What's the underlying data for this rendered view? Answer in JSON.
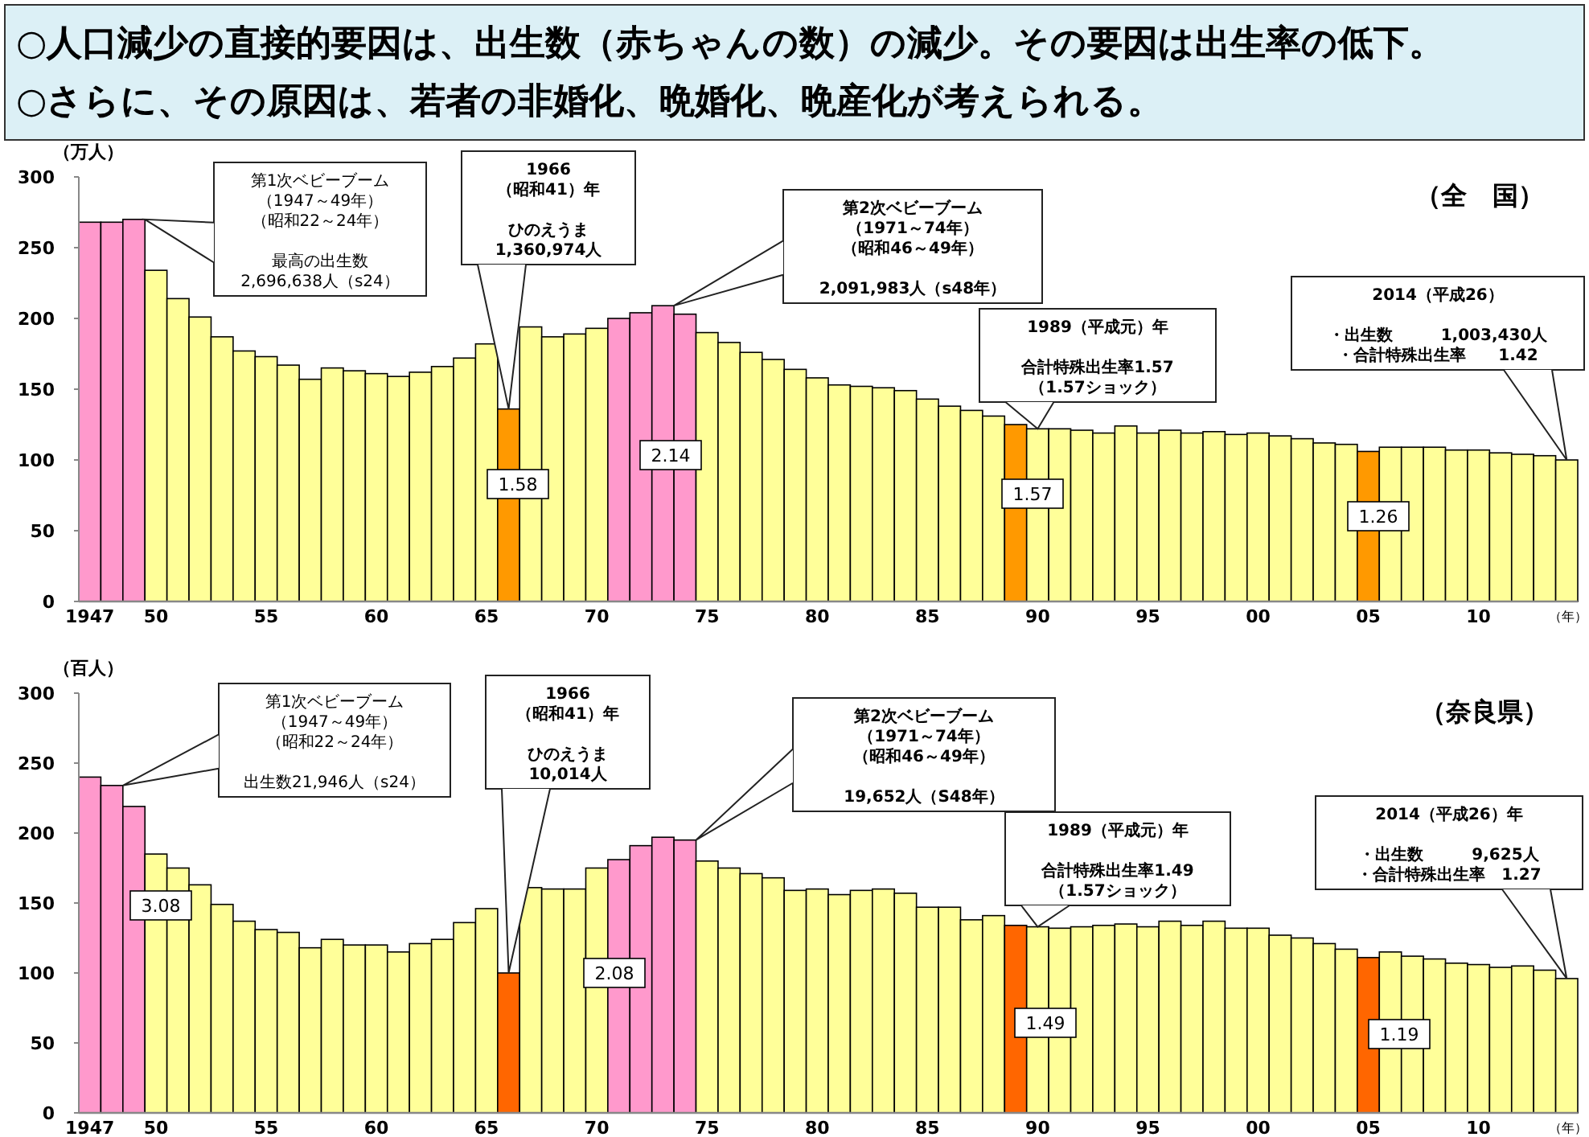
{
  "chart_data": [
    {
      "type": "bar",
      "title": "○人口減少の直接的要因は、出生数（赤ちゃんの数）の減少。その要因は出生率の低下。",
      "subtitle": "○さらに、その原因は、若者の非婚化、晩婚化、晩産化が考えられる。",
      "ylabel": "（万人）",
      "xlabel": "（年）",
      "categories": [
        "1947",
        null,
        null,
        "50",
        null,
        null,
        null,
        null,
        "55",
        null,
        null,
        null,
        null,
        "60",
        null,
        null,
        null,
        null,
        "65",
        null,
        null,
        null,
        null,
        "70",
        null,
        null,
        null,
        null,
        "75",
        null,
        null,
        null,
        null,
        "80",
        null,
        null,
        null,
        null,
        "85",
        null,
        null,
        null,
        null,
        "90",
        null,
        null,
        null,
        null,
        "95",
        null,
        null,
        null,
        null,
        "00",
        null,
        null,
        null,
        null,
        "05",
        null,
        null,
        null,
        null,
        "10",
        null,
        null,
        null,
        null
      ],
      "values": [
        268,
        268,
        270,
        234,
        214,
        201,
        187,
        177,
        173,
        167,
        157,
        165,
        163,
        161,
        159,
        162,
        166,
        172,
        182,
        136,
        194,
        187,
        189,
        193,
        200,
        204,
        209,
        203,
        190,
        183,
        176,
        171,
        164,
        158,
        153,
        152,
        151,
        149,
        143,
        138,
        135,
        131,
        125,
        122,
        122,
        121,
        119,
        124,
        119,
        121,
        119,
        120,
        118,
        119,
        117,
        115,
        112,
        111,
        106,
        109,
        109,
        109,
        107,
        107,
        105,
        104,
        103,
        100
      ],
      "colors": [
        "#ff99cc",
        "#ff99cc",
        "#ff99cc",
        "#ffff99",
        "#ffff99",
        "#ffff99",
        "#ffff99",
        "#ffff99",
        "#ffff99",
        "#ffff99",
        "#ffff99",
        "#ffff99",
        "#ffff99",
        "#ffff99",
        "#ffff99",
        "#ffff99",
        "#ffff99",
        "#ffff99",
        "#ffff99",
        "#ff9900",
        "#ffff99",
        "#ffff99",
        "#ffff99",
        "#ffff99",
        "#ff99cc",
        "#ff99cc",
        "#ff99cc",
        "#ff99cc",
        "#ffff99",
        "#ffff99",
        "#ffff99",
        "#ffff99",
        "#ffff99",
        "#ffff99",
        "#ffff99",
        "#ffff99",
        "#ffff99",
        "#ffff99",
        "#ffff99",
        "#ffff99",
        "#ffff99",
        "#ffff99",
        "#ff9900",
        "#ffff99",
        "#ffff99",
        "#ffff99",
        "#ffff99",
        "#ffff99",
        "#ffff99",
        "#ffff99",
        "#ffff99",
        "#ffff99",
        "#ffff99",
        "#ffff99",
        "#ffff99",
        "#ffff99",
        "#ffff99",
        "#ffff99",
        "#ff9900",
        "#ffff99",
        "#ffff99",
        "#ffff99",
        "#ffff99",
        "#ffff99",
        "#ffff99",
        "#ffff99",
        "#ffff99",
        "#ffff99"
      ],
      "ylim": [
        0,
        300
      ],
      "yticks": [
        0,
        50,
        100,
        150,
        200,
        250,
        300
      ],
      "annotations": [
        "（全　国）",
        "第1次ベビーブーム",
        "（1947～49年）",
        "（昭和22～24年）",
        "最高の出生数",
        "2,696,638人（s24）",
        "1966",
        "（昭和41）年",
        "ひのえうま",
        "1,360,974人",
        "第2次ベビーブーム",
        "（1971～74年）",
        "（昭和46～49年）",
        "2,091,983人（s48年）",
        "1989（平成元）年",
        "合計特殊出生率1.57",
        "（1.57ショック）",
        "2014（平成26）",
        "・出生数　　　1,003,430人",
        "・合計特殊出生率　　1.42",
        "1.58",
        "2.14",
        "1.57",
        "1.26"
      ]
    },
    {
      "type": "bar",
      "ylabel": "（百人）",
      "xlabel": "（年）",
      "categories": [
        "1947",
        null,
        null,
        "50",
        null,
        null,
        null,
        null,
        "55",
        null,
        null,
        null,
        null,
        "60",
        null,
        null,
        null,
        null,
        "65",
        null,
        null,
        null,
        null,
        "70",
        null,
        null,
        null,
        null,
        "75",
        null,
        null,
        null,
        null,
        "80",
        null,
        null,
        null,
        null,
        "85",
        null,
        null,
        null,
        null,
        "90",
        null,
        null,
        null,
        null,
        "95",
        null,
        null,
        null,
        null,
        "00",
        null,
        null,
        null,
        null,
        "05",
        null,
        null,
        null,
        null,
        "10",
        null,
        null,
        null,
        null
      ],
      "values": [
        240,
        234,
        219,
        185,
        175,
        163,
        149,
        137,
        131,
        129,
        118,
        124,
        120,
        120,
        115,
        121,
        124,
        136,
        146,
        100,
        161,
        160,
        160,
        175,
        181,
        191,
        197,
        195,
        180,
        175,
        171,
        168,
        159,
        160,
        156,
        159,
        160,
        157,
        147,
        147,
        138,
        141,
        134,
        133,
        132,
        133,
        134,
        135,
        133,
        137,
        134,
        137,
        132,
        132,
        127,
        125,
        121,
        117,
        111,
        115,
        112,
        110,
        107,
        106,
        104,
        105,
        102,
        96
      ],
      "colors": [
        "#ff99cc",
        "#ff99cc",
        "#ff99cc",
        "#ffff99",
        "#ffff99",
        "#ffff99",
        "#ffff99",
        "#ffff99",
        "#ffff99",
        "#ffff99",
        "#ffff99",
        "#ffff99",
        "#ffff99",
        "#ffff99",
        "#ffff99",
        "#ffff99",
        "#ffff99",
        "#ffff99",
        "#ffff99",
        "#ff6600",
        "#ffff99",
        "#ffff99",
        "#ffff99",
        "#ffff99",
        "#ff99cc",
        "#ff99cc",
        "#ff99cc",
        "#ff99cc",
        "#ffff99",
        "#ffff99",
        "#ffff99",
        "#ffff99",
        "#ffff99",
        "#ffff99",
        "#ffff99",
        "#ffff99",
        "#ffff99",
        "#ffff99",
        "#ffff99",
        "#ffff99",
        "#ffff99",
        "#ffff99",
        "#ff6600",
        "#ffff99",
        "#ffff99",
        "#ffff99",
        "#ffff99",
        "#ffff99",
        "#ffff99",
        "#ffff99",
        "#ffff99",
        "#ffff99",
        "#ffff99",
        "#ffff99",
        "#ffff99",
        "#ffff99",
        "#ffff99",
        "#ffff99",
        "#ff6600",
        "#ffff99",
        "#ffff99",
        "#ffff99",
        "#ffff99",
        "#ffff99",
        "#ffff99",
        "#ffff99",
        "#ffff99",
        "#ffff99"
      ],
      "ylim": [
        0,
        300
      ],
      "yticks": [
        0,
        50,
        100,
        150,
        200,
        250,
        300
      ],
      "annotations": [
        "（奈良県）",
        "第1次ベビーブーム",
        "（1947～49年）",
        "（昭和22～24年）",
        "出生数21,946人（s24）",
        "1966",
        "（昭和41）年",
        "ひのえうま",
        "10,014人",
        "第2次ベビーブーム",
        "（1971～74年）",
        "（昭和46～49年）",
        "19,652人（S48年）",
        "1989（平成元）年",
        "合計特殊出生率1.49",
        "（1.57ショック）",
        "2014（平成26）年",
        "・出生数　　　9,625人",
        "・合計特殊出生率　1.27",
        "3.08",
        "2.08",
        "1.49",
        "1.19"
      ]
    }
  ]
}
